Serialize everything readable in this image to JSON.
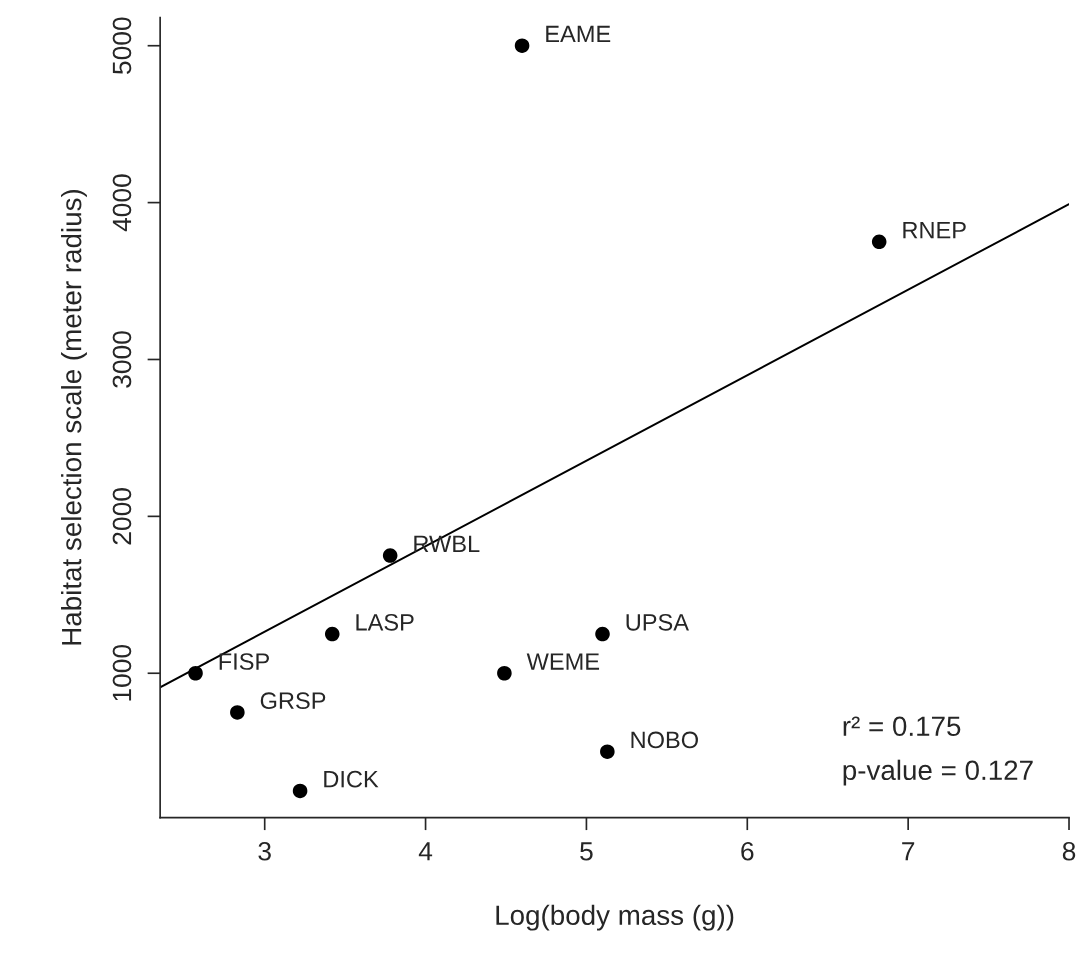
{
  "chart_data": {
    "type": "scatter",
    "xlabel": "Log(body mass (g))",
    "ylabel": "Habitat selection scale (meter radius)",
    "xlim": [
      2.35,
      8.0
    ],
    "ylim": [
      80,
      5180
    ],
    "xticks": [
      3,
      4,
      5,
      6,
      7,
      8
    ],
    "yticks": [
      1000,
      2000,
      3000,
      4000,
      5000
    ],
    "grid": false,
    "legend": false,
    "series": [
      {
        "marker": "circle",
        "color": "#000000",
        "x": [
          4.6,
          6.82,
          3.78,
          3.42,
          5.1,
          2.57,
          4.49,
          2.83,
          5.13,
          3.22
        ],
        "values": [
          5000,
          3750,
          1750,
          1250,
          1250,
          1000,
          1000,
          750,
          500,
          250
        ]
      },
      {
        "type": "line",
        "color": "#000000",
        "line_style": "solid",
        "x": [
          2.35,
          8.0
        ],
        "values": [
          910,
          3990
        ]
      }
    ],
    "annotations": [
      {
        "text": "EAME",
        "x": 4.6,
        "y": 5000
      },
      {
        "text": "RNEP",
        "x": 6.82,
        "y": 3750
      },
      {
        "text": "RWBL",
        "x": 3.78,
        "y": 1750
      },
      {
        "text": "LASP",
        "x": 3.42,
        "y": 1250
      },
      {
        "text": "UPSA",
        "x": 5.1,
        "y": 1250
      },
      {
        "text": "FISP",
        "x": 2.57,
        "y": 1000
      },
      {
        "text": "WEME",
        "x": 4.49,
        "y": 1000
      },
      {
        "text": "GRSP",
        "x": 2.83,
        "y": 750
      },
      {
        "text": "NOBO",
        "x": 5.13,
        "y": 500
      },
      {
        "text": "DICK",
        "x": 3.22,
        "y": 250
      },
      "r² = 0.175",
      "p-value = 0.127"
    ]
  }
}
